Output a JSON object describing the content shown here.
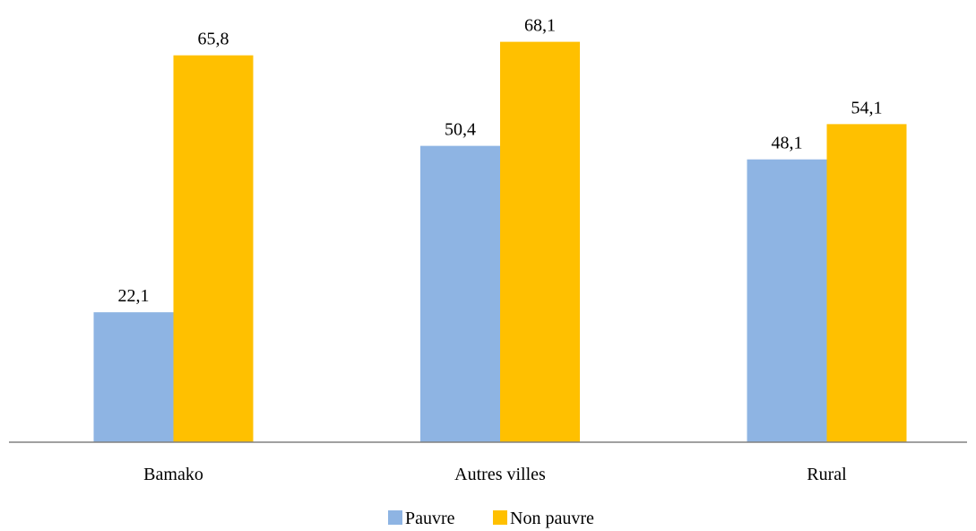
{
  "chart_data": {
    "type": "bar",
    "categories": [
      "Bamako",
      "Autres villes",
      "Rural"
    ],
    "series": [
      {
        "name": "Pauvre",
        "values": [
          22.1,
          50.4,
          48.1
        ],
        "labels": [
          "22,1",
          "50,4",
          "48,1"
        ],
        "color": "#8EB4E3"
      },
      {
        "name": "Non pauvre",
        "values": [
          65.8,
          68.1,
          54.1
        ],
        "labels": [
          "65,8",
          "68,1",
          "54,1"
        ],
        "color": "#FFC000"
      }
    ],
    "ylim": [
      0,
      70
    ],
    "grid": false,
    "legend_position": "bottom",
    "axis_color": "#808080"
  }
}
